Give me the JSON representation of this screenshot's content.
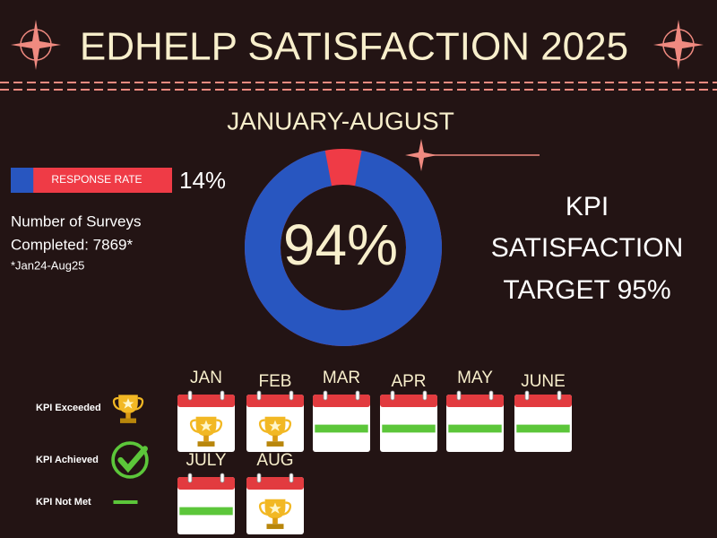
{
  "title": "EDHELP SATISFACTION 2025",
  "subtitle": "JANUARY-AUGUST",
  "response_rate": {
    "label": "RESPONSE RATE",
    "value": 14,
    "value_label": "14%"
  },
  "surveys": {
    "lines": [
      "Number of Surveys",
      "Completed: 7869*"
    ],
    "note": "*Jan24-Aug25"
  },
  "donut": {
    "value": 94,
    "value_label": "94%"
  },
  "kpi": {
    "lines": [
      "KPI",
      "SATISFACTION",
      "TARGET 95%"
    ]
  },
  "legend": [
    "KPI Exceeded",
    "KPI Achieved",
    "KPI Not Met"
  ],
  "months": [
    {
      "name": "JAN",
      "status": "KPI Exceeded"
    },
    {
      "name": "FEB",
      "status": "KPI Exceeded"
    },
    {
      "name": "MAR",
      "status": "KPI Not Met"
    },
    {
      "name": "APR",
      "status": "KPI Not Met"
    },
    {
      "name": "MAY",
      "status": "KPI Not Met"
    },
    {
      "name": "JUNE",
      "status": "KPI Not Met"
    },
    {
      "name": "JULY",
      "status": "KPI Not Met"
    },
    {
      "name": "AUG",
      "status": "KPI Exceeded"
    }
  ]
}
